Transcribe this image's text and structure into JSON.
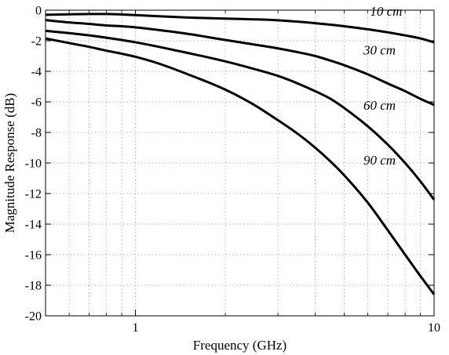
{
  "chart_data": {
    "type": "line",
    "title": "",
    "xlabel": "Frequency (GHz)",
    "ylabel": "Magnitude Response (dB)",
    "xscale": "log",
    "xlim": [
      0.5,
      10
    ],
    "ylim": [
      -20,
      0
    ],
    "xticks": [
      {
        "value": 1,
        "label": "1"
      },
      {
        "value": 10,
        "label": "10"
      }
    ],
    "yticks": [
      {
        "value": 0,
        "label": "0"
      },
      {
        "value": -2,
        "label": "-2"
      },
      {
        "value": -4,
        "label": "-4"
      },
      {
        "value": -6,
        "label": "-6"
      },
      {
        "value": -8,
        "label": "-8"
      },
      {
        "value": -10,
        "label": "-10"
      },
      {
        "value": -12,
        "label": "-12"
      },
      {
        "value": -14,
        "label": "-14"
      },
      {
        "value": -16,
        "label": "-16"
      },
      {
        "value": -18,
        "label": "-18"
      },
      {
        "value": -20,
        "label": "-20"
      }
    ],
    "grid": true,
    "color": "#000000",
    "series": [
      {
        "name": "10 cm",
        "x": [
          0.5,
          0.6,
          0.7,
          0.8,
          0.9,
          1.0,
          1.2,
          1.5,
          2.0,
          2.5,
          3.0,
          3.5,
          4.0,
          4.5,
          5.0,
          6.0,
          7.0,
          8.0,
          9.0,
          10.0
        ],
        "y": [
          -0.3,
          -0.27,
          -0.25,
          -0.25,
          -0.28,
          -0.32,
          -0.4,
          -0.48,
          -0.55,
          -0.6,
          -0.66,
          -0.75,
          -0.85,
          -0.95,
          -1.05,
          -1.25,
          -1.45,
          -1.65,
          -1.85,
          -2.1
        ]
      },
      {
        "name": "30 cm",
        "x": [
          0.5,
          0.6,
          0.7,
          0.8,
          0.9,
          1.0,
          1.2,
          1.5,
          2.0,
          2.5,
          3.0,
          3.5,
          4.0,
          4.5,
          5.0,
          6.0,
          7.0,
          8.0,
          9.0,
          10.0
        ],
        "y": [
          -0.65,
          -0.8,
          -0.9,
          -1.0,
          -1.05,
          -1.12,
          -1.3,
          -1.55,
          -1.95,
          -2.25,
          -2.5,
          -2.75,
          -3.0,
          -3.3,
          -3.6,
          -4.2,
          -4.8,
          -5.3,
          -5.8,
          -6.2
        ]
      },
      {
        "name": "60 cm",
        "x": [
          0.5,
          0.6,
          0.7,
          0.8,
          0.9,
          1.0,
          1.2,
          1.5,
          2.0,
          2.5,
          3.0,
          3.5,
          4.0,
          4.5,
          5.0,
          6.0,
          7.0,
          8.0,
          9.0,
          10.0
        ],
        "y": [
          -1.35,
          -1.5,
          -1.65,
          -1.8,
          -1.95,
          -2.1,
          -2.4,
          -2.8,
          -3.35,
          -3.85,
          -4.3,
          -4.8,
          -5.3,
          -5.8,
          -6.4,
          -7.6,
          -8.8,
          -10.0,
          -11.2,
          -12.4
        ]
      },
      {
        "name": "90 cm",
        "x": [
          0.5,
          0.6,
          0.7,
          0.8,
          0.9,
          1.0,
          1.2,
          1.5,
          2.0,
          2.5,
          3.0,
          3.5,
          4.0,
          4.5,
          5.0,
          6.0,
          7.0,
          8.0,
          9.0,
          10.0
        ],
        "y": [
          -1.85,
          -2.15,
          -2.4,
          -2.65,
          -2.85,
          -3.05,
          -3.5,
          -4.2,
          -5.2,
          -6.2,
          -7.2,
          -8.1,
          -9.0,
          -9.9,
          -10.8,
          -12.6,
          -14.4,
          -16.0,
          -17.4,
          -18.6
        ]
      }
    ],
    "annotations": [
      {
        "text": "10 cm",
        "x": 6.1,
        "y": -0.35
      },
      {
        "text": "30 cm",
        "x": 5.8,
        "y": -2.9
      },
      {
        "text": "60 cm",
        "x": 5.8,
        "y": -6.5
      },
      {
        "text": "90 cm",
        "x": 5.8,
        "y": -10.1
      }
    ]
  }
}
